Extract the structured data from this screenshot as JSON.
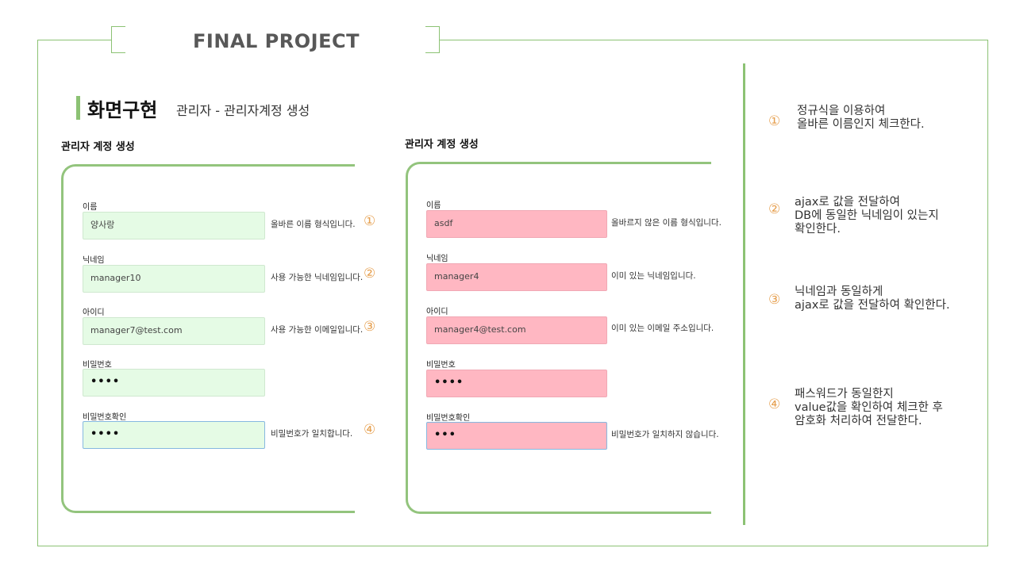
{
  "header": {
    "project_title": "FINAL PROJECT"
  },
  "section": {
    "title": "화면구현",
    "subtitle": "관리자 - 관리자계정 생성"
  },
  "left_panel": {
    "title": "관리자 계정 생성",
    "fields": [
      {
        "label": "이름",
        "value": "양사랑",
        "message": "올바른 이름 형식입니다.",
        "marker": "①"
      },
      {
        "label": "닉네임",
        "value": "manager10",
        "message": "사용 가능한 닉네임입니다.",
        "marker": "②"
      },
      {
        "label": "아이디",
        "value": "manager7@test.com",
        "message": "사용 가능한 이메일입니다.",
        "marker": "③"
      },
      {
        "label": "비밀번호",
        "value": "••••",
        "message": "",
        "marker": ""
      },
      {
        "label": "비밀번호확인",
        "value": "••••",
        "message": "비밀번호가 일치합니다.",
        "marker": "④"
      }
    ]
  },
  "right_panel": {
    "title": "관리자 계정 생성",
    "fields": [
      {
        "label": "이름",
        "value": "asdf",
        "message": "올바르지 않은 이름 형식입니다."
      },
      {
        "label": "닉네임",
        "value": "manager4",
        "message": "이미 있는 닉네임입니다."
      },
      {
        "label": "아이디",
        "value": "manager4@test.com",
        "message": "이미 있는 이메일 주소입니다."
      },
      {
        "label": "비밀번호",
        "value": "••••",
        "message": ""
      },
      {
        "label": "비밀번호확인",
        "value": "•••",
        "message": "비밀번호가 일치하지 않습니다."
      }
    ]
  },
  "notes": [
    {
      "marker": "①",
      "text": "정규식을 이용하여\n올바른 이름인지 체크한다."
    },
    {
      "marker": "②",
      "text": "ajax로 값을 전달하여\nDB에 동일한 닉네임이 있는지\n확인한다."
    },
    {
      "marker": "③",
      "text": "닉네임과 동일하게\najax로 값을 전달하여 확인한다."
    },
    {
      "marker": "④",
      "text": "패스워드가 동일한지\nvalue값을 확인하여 체크한 후\n암호화 처리하여 전달한다."
    }
  ],
  "colors": {
    "accent": "#8cc274",
    "valid_bg": "#e5fbe5",
    "invalid_bg": "#ffb7c2",
    "marker": "#e6a050"
  }
}
